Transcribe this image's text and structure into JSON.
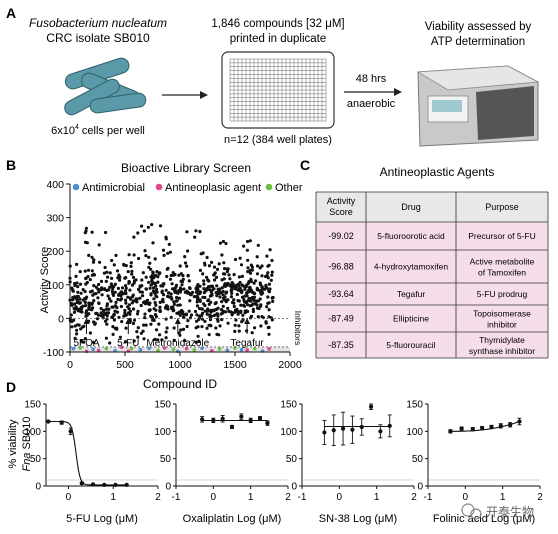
{
  "panels": {
    "A": "A",
    "B": "B",
    "C": "C",
    "D": "D"
  },
  "panel_a": {
    "organism": "Fusobacterium nucleatum",
    "isolate": "CRC isolate SB010",
    "cells_prefix": "6x10",
    "cells_exp": "4",
    "cells_suffix": " cells per well",
    "compounds_pre": "1,846 compounds [32 ",
    "compounds_mu": "μ",
    "compounds_post": "M]",
    "printed": "printed in duplicate",
    "plates": "n=12 (384 well plates)",
    "time": "48 hrs",
    "condition": "anaerobic",
    "viability_line1": "Viability assessed by",
    "viability_line2": "ATP determination"
  },
  "panel_c": {
    "title": "Antineoplastic Agents",
    "headers": {
      "score_l1": "Activity",
      "score_l2": "Score",
      "drug": "Drug",
      "purpose": "Purpose"
    },
    "rows": [
      {
        "score": "-99.02",
        "drug": "5-fluoroorotic acid",
        "p1": "Precursor of 5-FU",
        "p2": ""
      },
      {
        "score": "-96.88",
        "drug": "4-hydroxytamoxifen",
        "p1": "Active metabolite",
        "p2": "of Tamoxifen"
      },
      {
        "score": "-93.64",
        "drug": "Tegafur",
        "p1": "5-FU prodrug",
        "p2": ""
      },
      {
        "score": "-87.49",
        "drug": "Ellipticine",
        "p1": "Topoisomerase",
        "p2": "inhibitor"
      },
      {
        "score": "-87.35",
        "drug": "5-fluorouracil",
        "p1": "Thymidylate",
        "p2": "synthase inhibitor"
      }
    ]
  },
  "watermark": "开泰生物",
  "colors": {
    "antimicrobial": "#4f8fd6",
    "antineoplastic": "#e0468e",
    "other": "#6cbf3f",
    "bacteria": "#5a9aa8",
    "row_pink": "#f5dde9",
    "header_gray": "#e8e8e8",
    "shade": "#e4e4e4"
  },
  "chart_data": [
    {
      "type": "scatter",
      "title": "Bioactive Library Screen",
      "xlabel": "Compound ID",
      "ylabel": "Activity Score",
      "xlim": [
        0,
        2000
      ],
      "ylim": [
        -100,
        400
      ],
      "xticks": [
        "0",
        "500",
        "1000",
        "1500",
        "2000"
      ],
      "yticks": [
        "-100",
        "0",
        "100",
        "200",
        "300",
        "400"
      ],
      "legend": [
        "Antimicrobial",
        "Antineoplasic agent",
        "Other"
      ],
      "inhibitors_label": "Inhibitors",
      "threshold": -85,
      "annotations": [
        {
          "label": "5FOA",
          "x": 150
        },
        {
          "label": "5-FU",
          "x": 530
        },
        {
          "label": "Metronidazole",
          "x": 980
        },
        {
          "label": "Tegafur",
          "x": 1610
        }
      ],
      "n_points": 1846,
      "colored_points": [
        {
          "x": 30,
          "y": -90,
          "c": "antimicrobial"
        },
        {
          "x": 95,
          "y": -88,
          "c": "other"
        },
        {
          "x": 150,
          "y": -98,
          "c": "antineoplastic"
        },
        {
          "x": 210,
          "y": -92,
          "c": "antimicrobial"
        },
        {
          "x": 260,
          "y": -95,
          "c": "antineoplastic"
        },
        {
          "x": 330,
          "y": -90,
          "c": "other"
        },
        {
          "x": 410,
          "y": -96,
          "c": "antimicrobial"
        },
        {
          "x": 470,
          "y": -86,
          "c": "antineoplastic"
        },
        {
          "x": 530,
          "y": -97,
          "c": "antineoplastic"
        },
        {
          "x": 560,
          "y": -90,
          "c": "other"
        },
        {
          "x": 640,
          "y": -93,
          "c": "antimicrobial"
        },
        {
          "x": 720,
          "y": -89,
          "c": "antimicrobial"
        },
        {
          "x": 800,
          "y": -95,
          "c": "other"
        },
        {
          "x": 860,
          "y": -88,
          "c": "antineoplastic"
        },
        {
          "x": 940,
          "y": -92,
          "c": "other"
        },
        {
          "x": 980,
          "y": -98,
          "c": "antimicrobial"
        },
        {
          "x": 1060,
          "y": -90,
          "c": "antineoplastic"
        },
        {
          "x": 1130,
          "y": -94,
          "c": "other"
        },
        {
          "x": 1200,
          "y": -89,
          "c": "antimicrobial"
        },
        {
          "x": 1290,
          "y": -96,
          "c": "antineoplastic"
        },
        {
          "x": 1360,
          "y": -91,
          "c": "other"
        },
        {
          "x": 1430,
          "y": -95,
          "c": "antimicrobial"
        },
        {
          "x": 1500,
          "y": -88,
          "c": "other"
        },
        {
          "x": 1560,
          "y": -93,
          "c": "antimicrobial"
        },
        {
          "x": 1610,
          "y": -94,
          "c": "antineoplastic"
        },
        {
          "x": 1680,
          "y": -90,
          "c": "other"
        },
        {
          "x": 1750,
          "y": -97,
          "c": "antimicrobial"
        },
        {
          "x": 1810,
          "y": -91,
          "c": "antineoplastic"
        }
      ]
    },
    {
      "type": "line",
      "ylabel": "% viability",
      "ylabel2": "SB010",
      "ylabel_italic": "Fna",
      "yticks": [
        "0",
        "50",
        "100",
        "150"
      ],
      "ylim": [
        0,
        150
      ],
      "xlim": [
        -0.6,
        2
      ],
      "subplots": [
        {
          "xlabel": "5-FU Log (μM)",
          "xticks": [
            "0",
            "1",
            "2"
          ],
          "x": [
            -0.45,
            -0.15,
            0.05,
            0.3,
            0.55,
            0.8,
            1.05,
            1.3
          ],
          "y": [
            118,
            116,
            100,
            5,
            3,
            2,
            2,
            2
          ],
          "err": [
            2,
            3,
            6,
            2,
            1,
            1,
            1,
            1
          ],
          "fit": "sigmoid"
        },
        {
          "xlabel": "Oxaliplatin Log (μM)",
          "xticks": [
            "-1",
            "0",
            "1",
            "2"
          ],
          "x": [
            -0.3,
            0.0,
            0.25,
            0.5,
            0.75,
            1.0,
            1.25,
            1.45
          ],
          "y": [
            122,
            120,
            123,
            108,
            127,
            120,
            124,
            115
          ],
          "err": [
            5,
            4,
            6,
            3,
            5,
            4,
            3,
            4
          ],
          "fit": "flat"
        },
        {
          "xlabel": "SN-38 Log (μM)",
          "xticks": [
            "-1",
            "0",
            "1",
            "2"
          ],
          "x": [
            -0.4,
            -0.15,
            0.1,
            0.35,
            0.6,
            0.85,
            1.1,
            1.35
          ],
          "y": [
            98,
            102,
            105,
            103,
            108,
            145,
            100,
            110
          ],
          "err": [
            22,
            28,
            30,
            25,
            15,
            5,
            12,
            20
          ],
          "fit": "flat"
        },
        {
          "xlabel": "Folinic acid Log (μM)",
          "xticks": [
            "-1",
            "0",
            "1",
            "2"
          ],
          "x": [
            -0.4,
            -0.1,
            0.2,
            0.45,
            0.7,
            0.95,
            1.2,
            1.45
          ],
          "y": [
            100,
            105,
            104,
            106,
            108,
            110,
            112,
            118
          ],
          "err": [
            3,
            3,
            3,
            3,
            3,
            4,
            4,
            6
          ],
          "fit": "rise"
        }
      ]
    }
  ]
}
